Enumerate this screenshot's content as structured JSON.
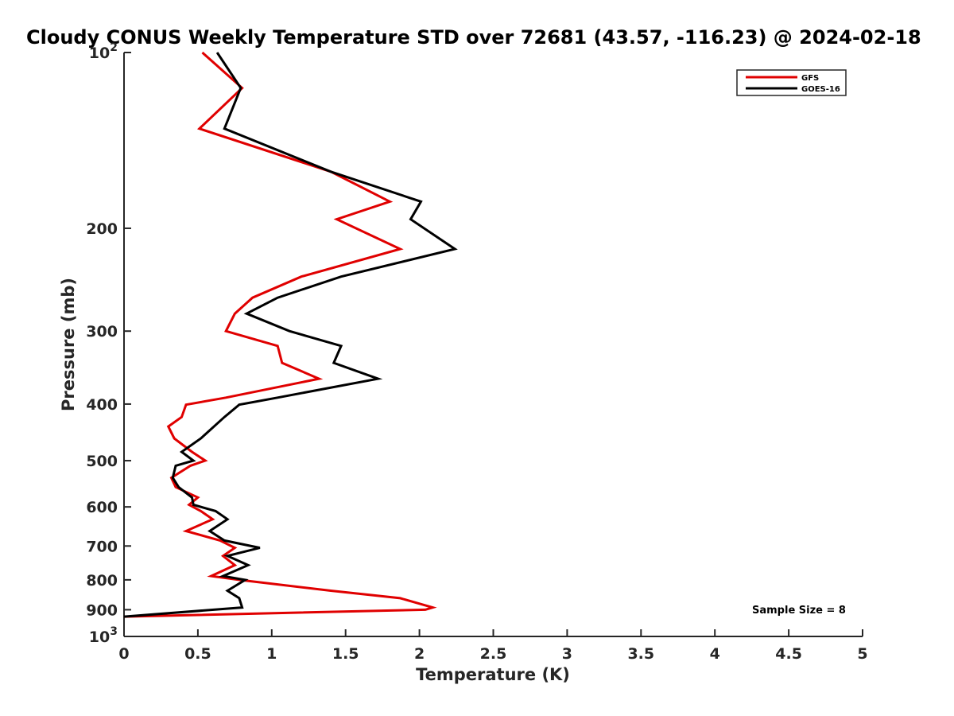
{
  "chart_data": {
    "type": "line",
    "title": "Cloudy CONUS Weekly Temperature STD over 72681 (43.57, -116.23) @ 2024-02-18",
    "xlabel": "Temperature (K)",
    "ylabel": "Pressure (mb)",
    "xlim": [
      0,
      5
    ],
    "ylim": [
      100,
      1000
    ],
    "y_scale": "log",
    "y_reversed": true,
    "grid": false,
    "legend_position": "top-right",
    "x_tick_labels": [
      "0",
      "0.5",
      "1",
      "1.5",
      "2",
      "2.5",
      "3",
      "3.5",
      "4",
      "4.5",
      "5"
    ],
    "x_ticks": [
      0,
      0.5,
      1,
      1.5,
      2,
      2.5,
      3,
      3.5,
      4,
      4.5,
      5
    ],
    "y_ticks": [
      {
        "value": 100,
        "base": "10",
        "exp": "2"
      },
      {
        "value": 200,
        "label": "200"
      },
      {
        "value": 300,
        "label": "300"
      },
      {
        "value": 400,
        "label": "400"
      },
      {
        "value": 500,
        "label": "500"
      },
      {
        "value": 600,
        "label": "600"
      },
      {
        "value": 700,
        "label": "700"
      },
      {
        "value": 800,
        "label": "800"
      },
      {
        "value": 900,
        "label": "900"
      },
      {
        "value": 1000,
        "base": "10",
        "exp": "3"
      }
    ],
    "annotation": "Sample Size = 8",
    "series": [
      {
        "name": "GFS",
        "color": "#e00000",
        "points": [
          [
            0.53,
            100
          ],
          [
            0.8,
            115
          ],
          [
            0.51,
            135
          ],
          [
            1.4,
            160
          ],
          [
            1.8,
            180
          ],
          [
            1.44,
            193
          ],
          [
            1.87,
            217
          ],
          [
            1.2,
            242
          ],
          [
            0.87,
            263
          ],
          [
            0.75,
            280
          ],
          [
            0.69,
            300
          ],
          [
            1.04,
            318
          ],
          [
            1.07,
            340
          ],
          [
            1.32,
            362
          ],
          [
            0.69,
            390
          ],
          [
            0.42,
            401
          ],
          [
            0.39,
            421
          ],
          [
            0.3,
            437
          ],
          [
            0.34,
            458
          ],
          [
            0.46,
            483
          ],
          [
            0.55,
            500
          ],
          [
            0.45,
            510
          ],
          [
            0.32,
            535
          ],
          [
            0.35,
            555
          ],
          [
            0.5,
            578
          ],
          [
            0.44,
            595
          ],
          [
            0.52,
            610
          ],
          [
            0.6,
            630
          ],
          [
            0.42,
            660
          ],
          [
            0.65,
            685
          ],
          [
            0.75,
            705
          ],
          [
            0.67,
            728
          ],
          [
            0.75,
            755
          ],
          [
            0.59,
            788
          ],
          [
            0.78,
            800
          ],
          [
            1.4,
            835
          ],
          [
            1.87,
            860
          ],
          [
            2.09,
            892
          ],
          [
            2.04,
            900
          ],
          [
            0.0,
            925
          ]
        ]
      },
      {
        "name": "GOES-16",
        "color": "#000000",
        "points": [
          [
            0.63,
            100
          ],
          [
            0.79,
            115
          ],
          [
            0.68,
            135
          ],
          [
            1.4,
            160
          ],
          [
            2.01,
            180
          ],
          [
            1.94,
            193
          ],
          [
            2.24,
            217
          ],
          [
            1.47,
            242
          ],
          [
            1.04,
            263
          ],
          [
            0.83,
            280
          ],
          [
            1.12,
            300
          ],
          [
            1.47,
            318
          ],
          [
            1.42,
            340
          ],
          [
            1.72,
            362
          ],
          [
            1.04,
            390
          ],
          [
            0.78,
            401
          ],
          [
            0.68,
            421
          ],
          [
            0.52,
            458
          ],
          [
            0.39,
            483
          ],
          [
            0.47,
            500
          ],
          [
            0.35,
            510
          ],
          [
            0.33,
            535
          ],
          [
            0.37,
            555
          ],
          [
            0.46,
            578
          ],
          [
            0.47,
            595
          ],
          [
            0.62,
            610
          ],
          [
            0.7,
            630
          ],
          [
            0.58,
            660
          ],
          [
            0.68,
            685
          ],
          [
            0.92,
            705
          ],
          [
            0.7,
            728
          ],
          [
            0.84,
            755
          ],
          [
            0.67,
            788
          ],
          [
            0.82,
            800
          ],
          [
            0.7,
            835
          ],
          [
            0.78,
            860
          ],
          [
            0.8,
            892
          ],
          [
            0.0,
            925
          ]
        ]
      }
    ]
  }
}
